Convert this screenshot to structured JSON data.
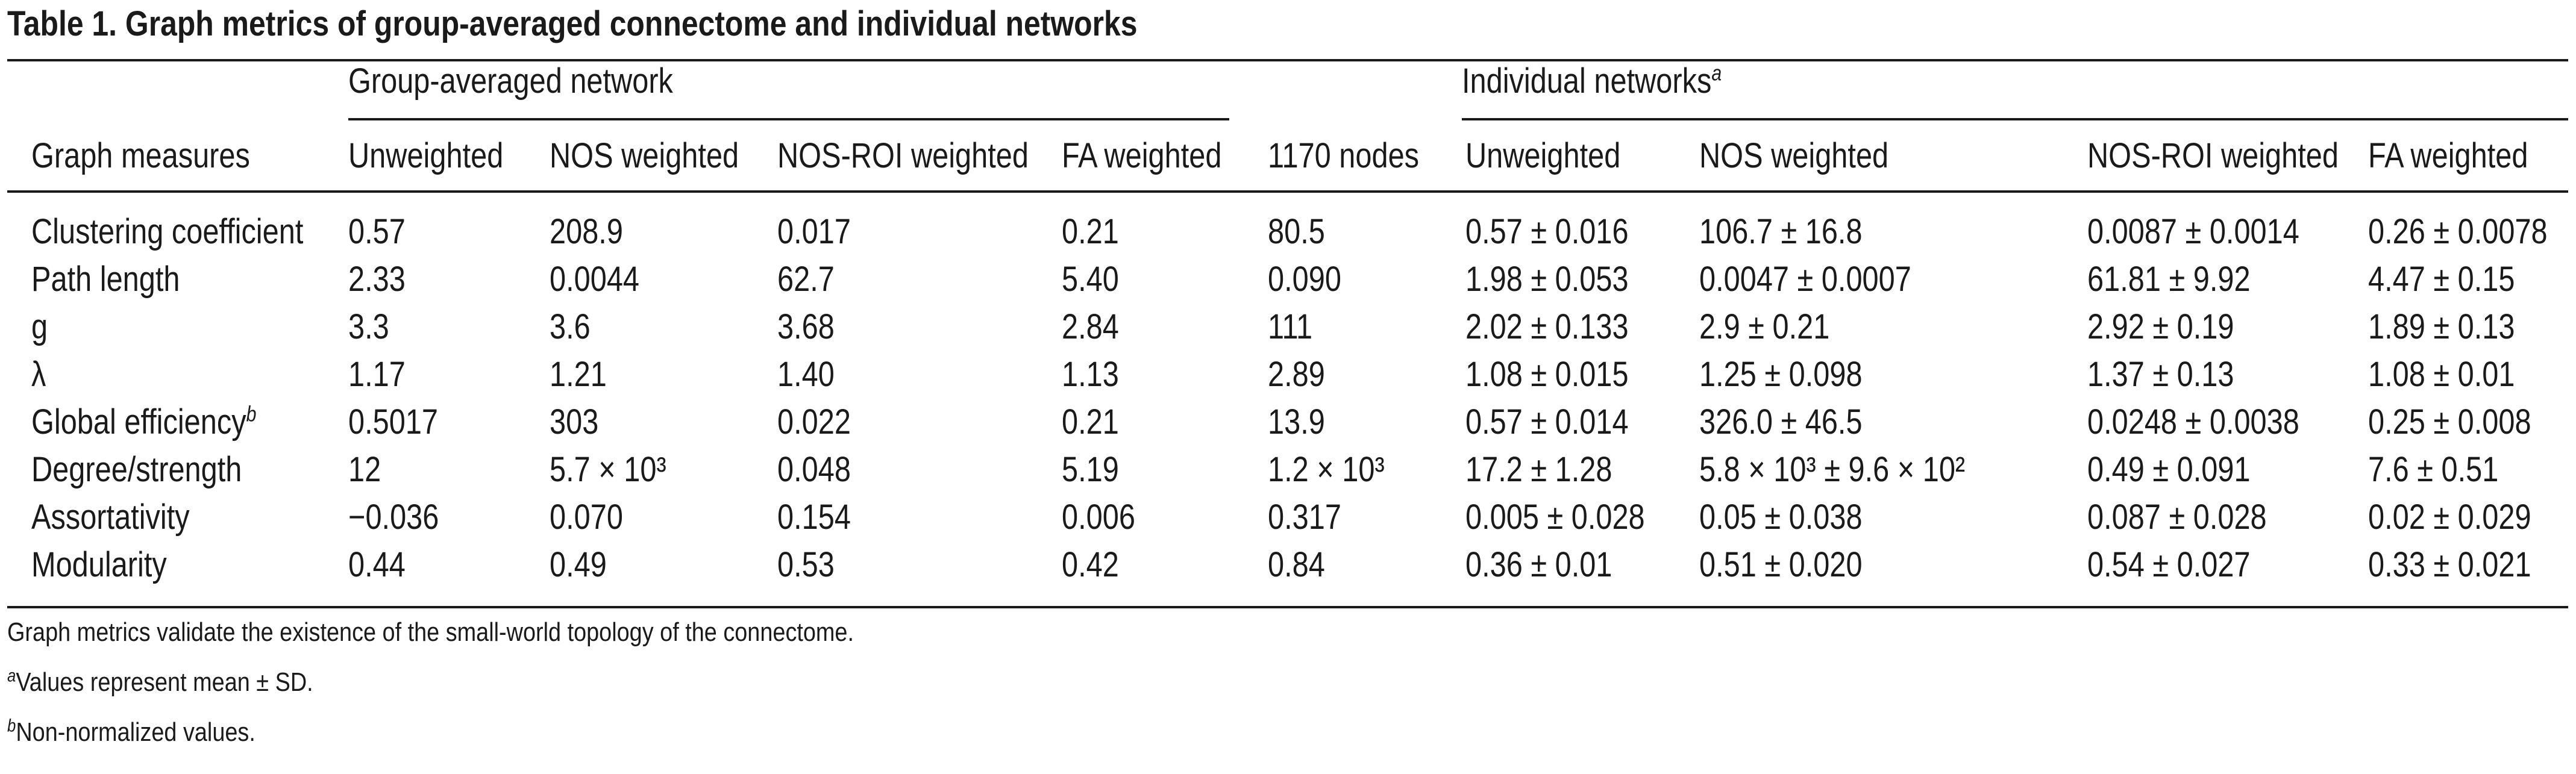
{
  "caption": "Table 1. Graph metrics of group-averaged connectome and individual networks",
  "headers": {
    "group_span": "Group-averaged network",
    "individual_span": "Individual networks",
    "individual_span_note": "a",
    "columns": [
      "Graph measures",
      "Unweighted",
      "NOS weighted",
      "NOS-ROI weighted",
      "FA weighted",
      "1170 nodes",
      "Unweighted",
      "NOS weighted",
      "NOS-ROI weighted",
      "FA weighted"
    ]
  },
  "rows": [
    {
      "label": "Clustering coefficient",
      "label_note": "",
      "cells": [
        "0.57",
        "208.9",
        "0.017",
        "0.21",
        "80.5",
        "0.57 ± 0.016",
        "106.7 ± 16.8",
        "0.0087 ± 0.0014",
        "0.26 ± 0.0078"
      ]
    },
    {
      "label": "Path length",
      "label_note": "",
      "cells": [
        "2.33",
        "0.0044",
        "62.7",
        "5.40",
        "0.090",
        "1.98 ± 0.053",
        "0.0047 ± 0.0007",
        "61.81 ± 9.92",
        "4.47 ± 0.15"
      ]
    },
    {
      "label": "g",
      "label_note": "",
      "cells": [
        "3.3",
        "3.6",
        "3.68",
        "2.84",
        "111",
        "2.02 ± 0.133",
        "2.9 ± 0.21",
        "2.92 ± 0.19",
        "1.89 ± 0.13"
      ]
    },
    {
      "label": "λ",
      "label_note": "",
      "cells": [
        "1.17",
        "1.21",
        "1.40",
        "1.13",
        "2.89",
        "1.08 ± 0.015",
        "1.25 ± 0.098",
        "1.37 ± 0.13",
        "1.08 ± 0.01"
      ]
    },
    {
      "label": "Global efficiency",
      "label_note": "b",
      "cells": [
        "0.5017",
        "303",
        "0.022",
        "0.21",
        "13.9",
        "0.57 ± 0.014",
        "326.0 ± 46.5",
        "0.0248 ± 0.0038",
        "0.25 ± 0.008"
      ]
    },
    {
      "label": "Degree/strength",
      "label_note": "",
      "cells": [
        "12",
        "5.7 × 10³",
        "0.048",
        "5.19",
        "1.2 × 10³",
        "17.2 ± 1.28",
        "5.8 × 10³ ± 9.6 × 10²",
        "0.49 ± 0.091",
        "7.6 ± 0.51"
      ]
    },
    {
      "label": "Assortativity",
      "label_note": "",
      "cells": [
        "−0.036",
        "0.070",
        "0.154",
        "0.006",
        "0.317",
        "0.005 ± 0.028",
        "0.05 ± 0.038",
        "0.087 ± 0.028",
        "0.02 ± 0.029"
      ]
    },
    {
      "label": "Modularity",
      "label_note": "",
      "cells": [
        "0.44",
        "0.49",
        "0.53",
        "0.42",
        "0.84",
        "0.36 ± 0.01",
        "0.51 ± 0.020",
        "0.54 ± 0.027",
        "0.33 ± 0.021"
      ]
    }
  ],
  "footnotes": [
    {
      "mark": "",
      "text": "Graph metrics validate the existence of the small-world topology of the connectome."
    },
    {
      "mark": "a",
      "text": "Values represent mean ± SD."
    },
    {
      "mark": "b",
      "text": "Non-normalized values."
    }
  ]
}
